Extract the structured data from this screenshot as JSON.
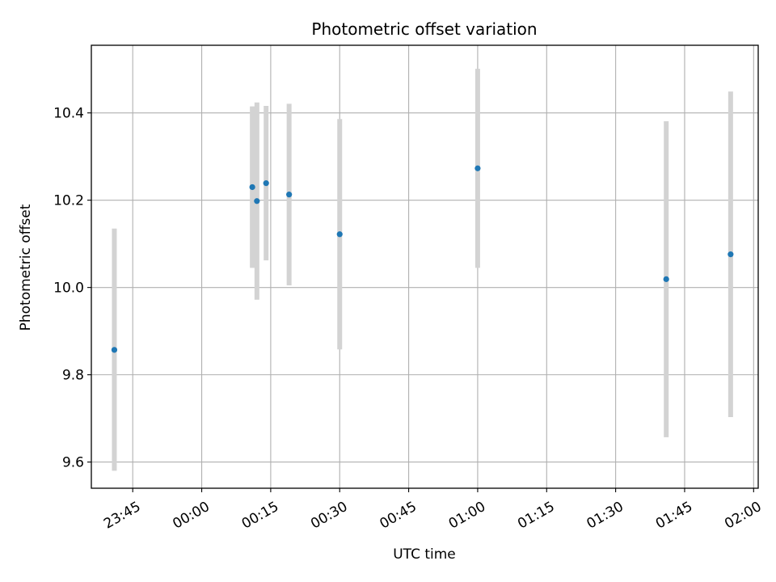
{
  "chart_data": {
    "type": "scatter",
    "title": "Photometric offset variation",
    "xlabel": "UTC time",
    "ylabel": "Photometric offset",
    "xlim": [
      "23:36",
      "02:01"
    ],
    "ylim": [
      9.54,
      10.555
    ],
    "xticks": [
      "23:45",
      "00:00",
      "00:15",
      "00:30",
      "00:45",
      "01:00",
      "01:15",
      "01:30",
      "01:45",
      "02:00"
    ],
    "yticks": [
      "9.6",
      "9.8",
      "10.0",
      "10.2",
      "10.4"
    ],
    "grid": true,
    "series": [
      {
        "marker_color": "#1f77b4",
        "error_color": "#d3d3d3",
        "points": [
          {
            "x": "23:41",
            "y": 9.857,
            "ylow": 9.58,
            "yhigh": 10.135
          },
          {
            "x": "00:11",
            "y": 10.23,
            "ylow": 10.045,
            "yhigh": 10.415
          },
          {
            "x": "00:12",
            "y": 10.198,
            "ylow": 9.972,
            "yhigh": 10.424
          },
          {
            "x": "00:14",
            "y": 10.239,
            "ylow": 10.062,
            "yhigh": 10.416
          },
          {
            "x": "00:19",
            "y": 10.213,
            "ylow": 10.005,
            "yhigh": 10.421
          },
          {
            "x": "00:30",
            "y": 10.122,
            "ylow": 9.858,
            "yhigh": 10.386
          },
          {
            "x": "01:00",
            "y": 10.273,
            "ylow": 10.045,
            "yhigh": 10.501
          },
          {
            "x": "01:41",
            "y": 10.019,
            "ylow": 9.657,
            "yhigh": 10.381
          },
          {
            "x": "01:55",
            "y": 10.076,
            "ylow": 9.703,
            "yhigh": 10.449
          }
        ]
      }
    ]
  }
}
